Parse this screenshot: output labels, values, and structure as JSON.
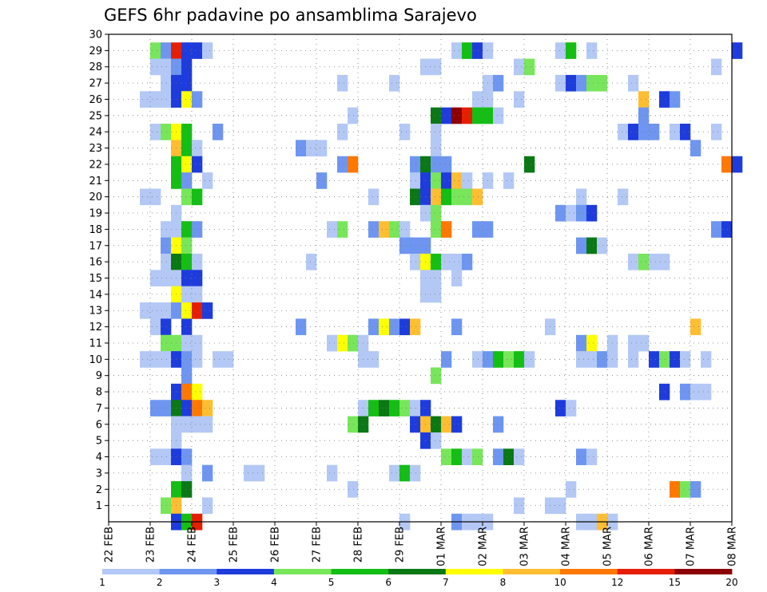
{
  "chart_data": {
    "type": "heatmap",
    "title": "GEFS 6hr padavine po ansamblima Sarajevo",
    "xlabel": "",
    "ylabel": "",
    "x_ticks": [
      "22 FEB",
      "23 FEB",
      "24 FEB",
      "25 FEB",
      "26 FEB",
      "27 FEB",
      "28 FEB",
      "29 FEB",
      "01 MAR",
      "02 MAR",
      "03 MAR",
      "04 MAR",
      "05 MAR",
      "06 MAR",
      "07 MAR",
      "08 MAR"
    ],
    "xlim_days": [
      0,
      15
    ],
    "y_ticks": [
      1,
      2,
      3,
      4,
      5,
      6,
      7,
      8,
      9,
      10,
      11,
      12,
      13,
      14,
      15,
      16,
      17,
      18,
      19,
      20,
      21,
      22,
      23,
      24,
      25,
      26,
      27,
      28,
      29,
      30
    ],
    "ylim": [
      0,
      30
    ],
    "grid": true,
    "legend": {
      "placement": "bottom",
      "labels": [
        "1",
        "2",
        "3",
        "4",
        "5",
        "6",
        "7",
        "8",
        "10",
        "12",
        "15",
        "20"
      ],
      "colors": [
        "#b4c8f5",
        "#6e96f0",
        "#1e3cdc",
        "#78e65a",
        "#14be14",
        "#0a7814",
        "#ffff00",
        "#ffbe32",
        "#ff7800",
        "#e61e00",
        "#8c0000"
      ]
    },
    "cells_cols": "each entry is [ensemble member, time step (6-hour steps from 22 FEB 00Z), precipitation class index into legend.colors]",
    "cells": [
      [
        29,
        4,
        3
      ],
      [
        29,
        5,
        1
      ],
      [
        29,
        6,
        9
      ],
      [
        29,
        7,
        2
      ],
      [
        29,
        8,
        2
      ],
      [
        29,
        9,
        0
      ],
      [
        29,
        33,
        0
      ],
      [
        29,
        34,
        4
      ],
      [
        29,
        35,
        2
      ],
      [
        29,
        36,
        0
      ],
      [
        29,
        43,
        0
      ],
      [
        29,
        44,
        4
      ],
      [
        29,
        46,
        0
      ],
      [
        29,
        60,
        2
      ],
      [
        28,
        4,
        0
      ],
      [
        28,
        5,
        0
      ],
      [
        28,
        6,
        1
      ],
      [
        28,
        7,
        2
      ],
      [
        28,
        30,
        0
      ],
      [
        28,
        31,
        0
      ],
      [
        28,
        39,
        0
      ],
      [
        28,
        40,
        3
      ],
      [
        28,
        58,
        0
      ],
      [
        27,
        5,
        0
      ],
      [
        27,
        6,
        2
      ],
      [
        27,
        7,
        2
      ],
      [
        27,
        22,
        0
      ],
      [
        27,
        27,
        0
      ],
      [
        27,
        36,
        0
      ],
      [
        27,
        37,
        1
      ],
      [
        27,
        43,
        0
      ],
      [
        27,
        44,
        2
      ],
      [
        27,
        45,
        1
      ],
      [
        27,
        46,
        3
      ],
      [
        27,
        47,
        3
      ],
      [
        27,
        50,
        0
      ],
      [
        26,
        3,
        0
      ],
      [
        26,
        4,
        0
      ],
      [
        26,
        5,
        0
      ],
      [
        26,
        6,
        2
      ],
      [
        26,
        7,
        6
      ],
      [
        26,
        8,
        1
      ],
      [
        26,
        35,
        0
      ],
      [
        26,
        36,
        0
      ],
      [
        26,
        39,
        0
      ],
      [
        26,
        51,
        7
      ],
      [
        26,
        53,
        2
      ],
      [
        26,
        54,
        1
      ],
      [
        25,
        23,
        0
      ],
      [
        25,
        31,
        5
      ],
      [
        25,
        32,
        2
      ],
      [
        25,
        33,
        10
      ],
      [
        25,
        34,
        9
      ],
      [
        25,
        35,
        4
      ],
      [
        25,
        36,
        4
      ],
      [
        25,
        37,
        0
      ],
      [
        25,
        51,
        1
      ],
      [
        24,
        4,
        0
      ],
      [
        24,
        5,
        3
      ],
      [
        24,
        6,
        6
      ],
      [
        24,
        7,
        4
      ],
      [
        24,
        10,
        1
      ],
      [
        24,
        22,
        0
      ],
      [
        24,
        28,
        0
      ],
      [
        24,
        31,
        0
      ],
      [
        24,
        49,
        0
      ],
      [
        24,
        50,
        2
      ],
      [
        24,
        51,
        1
      ],
      [
        24,
        52,
        1
      ],
      [
        24,
        54,
        0
      ],
      [
        24,
        55,
        2
      ],
      [
        24,
        58,
        0
      ],
      [
        23,
        6,
        7
      ],
      [
        23,
        7,
        4
      ],
      [
        23,
        8,
        0
      ],
      [
        23,
        18,
        1
      ],
      [
        23,
        19,
        0
      ],
      [
        23,
        20,
        0
      ],
      [
        23,
        31,
        0
      ],
      [
        23,
        56,
        1
      ],
      [
        22,
        6,
        4
      ],
      [
        22,
        7,
        6
      ],
      [
        22,
        8,
        2
      ],
      [
        22,
        22,
        1
      ],
      [
        22,
        23,
        8
      ],
      [
        22,
        29,
        1
      ],
      [
        22,
        30,
        5
      ],
      [
        22,
        31,
        1
      ],
      [
        22,
        32,
        1
      ],
      [
        22,
        40,
        5
      ],
      [
        22,
        59,
        8
      ],
      [
        22,
        60,
        2
      ],
      [
        21,
        6,
        4
      ],
      [
        21,
        7,
        1
      ],
      [
        21,
        9,
        0
      ],
      [
        21,
        20,
        1
      ],
      [
        21,
        29,
        0
      ],
      [
        21,
        30,
        2
      ],
      [
        21,
        31,
        3
      ],
      [
        21,
        32,
        2
      ],
      [
        21,
        33,
        7
      ],
      [
        21,
        34,
        0
      ],
      [
        21,
        36,
        0
      ],
      [
        21,
        38,
        0
      ],
      [
        20,
        3,
        0
      ],
      [
        20,
        4,
        0
      ],
      [
        20,
        7,
        3
      ],
      [
        20,
        8,
        4
      ],
      [
        20,
        25,
        0
      ],
      [
        20,
        29,
        5
      ],
      [
        20,
        30,
        2
      ],
      [
        20,
        31,
        7
      ],
      [
        20,
        32,
        4
      ],
      [
        20,
        33,
        3
      ],
      [
        20,
        34,
        3
      ],
      [
        20,
        35,
        7
      ],
      [
        20,
        45,
        0
      ],
      [
        20,
        49,
        0
      ],
      [
        19,
        6,
        0
      ],
      [
        19,
        30,
        0
      ],
      [
        19,
        31,
        3
      ],
      [
        19,
        43,
        1
      ],
      [
        19,
        44,
        0
      ],
      [
        19,
        45,
        1
      ],
      [
        19,
        46,
        2
      ],
      [
        18,
        5,
        0
      ],
      [
        18,
        6,
        0
      ],
      [
        18,
        7,
        4
      ],
      [
        18,
        8,
        1
      ],
      [
        18,
        21,
        0
      ],
      [
        18,
        22,
        3
      ],
      [
        18,
        25,
        1
      ],
      [
        18,
        26,
        7
      ],
      [
        18,
        27,
        3
      ],
      [
        18,
        28,
        0
      ],
      [
        18,
        31,
        3
      ],
      [
        18,
        32,
        8
      ],
      [
        18,
        35,
        1
      ],
      [
        18,
        36,
        1
      ],
      [
        18,
        58,
        1
      ],
      [
        18,
        59,
        2
      ],
      [
        17,
        5,
        1
      ],
      [
        17,
        6,
        6
      ],
      [
        17,
        7,
        3
      ],
      [
        17,
        28,
        1
      ],
      [
        17,
        29,
        1
      ],
      [
        17,
        30,
        1
      ],
      [
        17,
        45,
        1
      ],
      [
        17,
        46,
        5
      ],
      [
        17,
        47,
        0
      ],
      [
        16,
        5,
        0
      ],
      [
        16,
        6,
        5
      ],
      [
        16,
        7,
        4
      ],
      [
        16,
        8,
        0
      ],
      [
        16,
        19,
        0
      ],
      [
        16,
        29,
        0
      ],
      [
        16,
        30,
        6
      ],
      [
        16,
        31,
        4
      ],
      [
        16,
        32,
        0
      ],
      [
        16,
        33,
        0
      ],
      [
        16,
        34,
        1
      ],
      [
        16,
        50,
        0
      ],
      [
        16,
        51,
        3
      ],
      [
        16,
        52,
        0
      ],
      [
        16,
        53,
        0
      ],
      [
        15,
        4,
        0
      ],
      [
        15,
        5,
        0
      ],
      [
        15,
        6,
        0
      ],
      [
        15,
        7,
        2
      ],
      [
        15,
        8,
        2
      ],
      [
        15,
        30,
        0
      ],
      [
        15,
        31,
        0
      ],
      [
        15,
        33,
        0
      ],
      [
        14,
        6,
        6
      ],
      [
        14,
        7,
        0
      ],
      [
        14,
        8,
        0
      ],
      [
        14,
        30,
        0
      ],
      [
        14,
        31,
        0
      ],
      [
        13,
        3,
        0
      ],
      [
        13,
        4,
        0
      ],
      [
        13,
        5,
        0
      ],
      [
        13,
        6,
        1
      ],
      [
        13,
        7,
        6
      ],
      [
        13,
        8,
        9
      ],
      [
        13,
        9,
        2
      ],
      [
        12,
        4,
        0
      ],
      [
        12,
        5,
        2
      ],
      [
        12,
        7,
        2
      ],
      [
        12,
        18,
        1
      ],
      [
        12,
        25,
        1
      ],
      [
        12,
        26,
        6
      ],
      [
        12,
        27,
        1
      ],
      [
        12,
        28,
        2
      ],
      [
        12,
        29,
        7
      ],
      [
        12,
        33,
        1
      ],
      [
        12,
        42,
        0
      ],
      [
        12,
        56,
        7
      ],
      [
        11,
        5,
        3
      ],
      [
        11,
        6,
        3
      ],
      [
        11,
        7,
        0
      ],
      [
        11,
        8,
        0
      ],
      [
        11,
        21,
        0
      ],
      [
        11,
        22,
        6
      ],
      [
        11,
        23,
        3
      ],
      [
        11,
        24,
        0
      ],
      [
        11,
        45,
        1
      ],
      [
        11,
        46,
        6
      ],
      [
        11,
        48,
        0
      ],
      [
        11,
        50,
        0
      ],
      [
        11,
        51,
        0
      ],
      [
        10,
        3,
        0
      ],
      [
        10,
        4,
        0
      ],
      [
        10,
        5,
        0
      ],
      [
        10,
        6,
        2
      ],
      [
        10,
        7,
        1
      ],
      [
        10,
        8,
        0
      ],
      [
        10,
        10,
        0
      ],
      [
        10,
        11,
        0
      ],
      [
        10,
        24,
        0
      ],
      [
        10,
        25,
        0
      ],
      [
        10,
        32,
        1
      ],
      [
        10,
        35,
        0
      ],
      [
        10,
        36,
        1
      ],
      [
        10,
        37,
        4
      ],
      [
        10,
        38,
        3
      ],
      [
        10,
        39,
        4
      ],
      [
        10,
        40,
        0
      ],
      [
        10,
        45,
        0
      ],
      [
        10,
        46,
        0
      ],
      [
        10,
        47,
        1
      ],
      [
        10,
        48,
        0
      ],
      [
        10,
        50,
        0
      ],
      [
        10,
        52,
        2
      ],
      [
        10,
        53,
        3
      ],
      [
        10,
        54,
        2
      ],
      [
        10,
        55,
        0
      ],
      [
        10,
        57,
        0
      ],
      [
        9,
        7,
        1
      ],
      [
        9,
        31,
        3
      ],
      [
        8,
        6,
        2
      ],
      [
        8,
        7,
        8
      ],
      [
        8,
        8,
        6
      ],
      [
        8,
        53,
        2
      ],
      [
        8,
        55,
        1
      ],
      [
        8,
        56,
        0
      ],
      [
        8,
        57,
        0
      ],
      [
        7,
        4,
        1
      ],
      [
        7,
        5,
        1
      ],
      [
        7,
        6,
        5
      ],
      [
        7,
        7,
        2
      ],
      [
        7,
        8,
        8
      ],
      [
        7,
        9,
        7
      ],
      [
        7,
        24,
        0
      ],
      [
        7,
        25,
        4
      ],
      [
        7,
        26,
        5
      ],
      [
        7,
        27,
        4
      ],
      [
        7,
        28,
        3
      ],
      [
        7,
        29,
        0
      ],
      [
        7,
        30,
        2
      ],
      [
        7,
        43,
        2
      ],
      [
        7,
        44,
        0
      ],
      [
        6,
        6,
        0
      ],
      [
        6,
        7,
        0
      ],
      [
        6,
        8,
        0
      ],
      [
        6,
        9,
        0
      ],
      [
        6,
        23,
        3
      ],
      [
        6,
        24,
        5
      ],
      [
        6,
        29,
        2
      ],
      [
        6,
        30,
        7
      ],
      [
        6,
        31,
        5
      ],
      [
        6,
        32,
        7
      ],
      [
        6,
        33,
        2
      ],
      [
        6,
        37,
        1
      ],
      [
        5,
        6,
        0
      ],
      [
        5,
        30,
        2
      ],
      [
        5,
        31,
        0
      ],
      [
        4,
        4,
        0
      ],
      [
        4,
        5,
        0
      ],
      [
        4,
        6,
        2
      ],
      [
        4,
        7,
        1
      ],
      [
        4,
        32,
        3
      ],
      [
        4,
        33,
        4
      ],
      [
        4,
        34,
        0
      ],
      [
        4,
        35,
        3
      ],
      [
        4,
        37,
        1
      ],
      [
        4,
        38,
        5
      ],
      [
        4,
        39,
        0
      ],
      [
        4,
        45,
        1
      ],
      [
        4,
        46,
        0
      ],
      [
        3,
        7,
        0
      ],
      [
        3,
        9,
        1
      ],
      [
        3,
        13,
        0
      ],
      [
        3,
        14,
        0
      ],
      [
        3,
        21,
        0
      ],
      [
        3,
        27,
        0
      ],
      [
        3,
        28,
        4
      ],
      [
        3,
        29,
        0
      ],
      [
        2,
        6,
        4
      ],
      [
        2,
        7,
        5
      ],
      [
        2,
        23,
        0
      ],
      [
        2,
        44,
        0
      ],
      [
        2,
        54,
        8
      ],
      [
        2,
        55,
        3
      ],
      [
        2,
        56,
        1
      ],
      [
        1,
        5,
        3
      ],
      [
        1,
        6,
        7
      ],
      [
        1,
        9,
        0
      ],
      [
        1,
        39,
        0
      ],
      [
        1,
        42,
        0
      ],
      [
        1,
        43,
        0
      ],
      [
        0,
        6,
        2
      ],
      [
        0,
        7,
        4
      ],
      [
        0,
        8,
        9
      ],
      [
        0,
        28,
        0
      ],
      [
        0,
        33,
        1
      ],
      [
        0,
        34,
        0
      ],
      [
        0,
        35,
        0
      ],
      [
        0,
        36,
        0
      ],
      [
        0,
        45,
        0
      ],
      [
        0,
        46,
        0
      ],
      [
        0,
        47,
        7
      ],
      [
        0,
        48,
        0
      ]
    ]
  }
}
